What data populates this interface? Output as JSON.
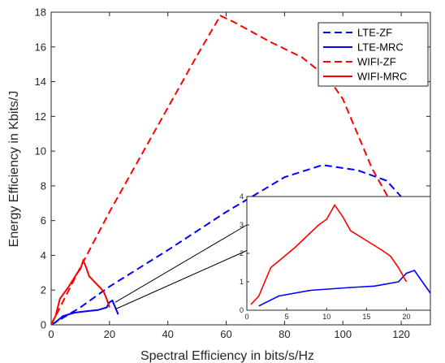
{
  "chart_data": [
    {
      "type": "line",
      "xlabel": "Spectral Efficiency in bits/s/Hz",
      "ylabel": "Energy Efficiency in Kbits/J",
      "xlim": [
        0,
        130
      ],
      "ylim": [
        0,
        18
      ],
      "xticks": [
        0,
        20,
        40,
        60,
        80,
        100,
        120
      ],
      "yticks": [
        0,
        2,
        4,
        6,
        8,
        10,
        12,
        14,
        16,
        18
      ],
      "grid": "off",
      "legend_position": "top-right",
      "series": [
        {
          "name": "LTE-ZF",
          "color": "#0000ff",
          "dash": "dashed",
          "x": [
            0,
            10,
            20,
            40,
            60,
            80,
            93,
            105,
            115,
            122,
            130
          ],
          "y": [
            0,
            1.0,
            2.2,
            4.3,
            6.5,
            8.5,
            9.2,
            8.9,
            8.3,
            7.0,
            6.3
          ]
        },
        {
          "name": "LTE-MRC",
          "color": "#0000ff",
          "dash": "solid",
          "x": [
            0,
            1.5,
            4,
            8,
            13,
            16,
            19,
            20,
            21,
            23
          ],
          "y": [
            0,
            0.15,
            0.5,
            0.7,
            0.8,
            0.85,
            1.0,
            1.3,
            1.4,
            0.6
          ]
        },
        {
          "name": "WIFI-ZF",
          "color": "#ff0000",
          "dash": "dashed",
          "x": [
            0,
            10,
            20,
            30,
            40,
            50,
            58,
            63,
            75,
            86,
            95,
            100,
            105,
            110,
            116
          ],
          "y": [
            0,
            3.3,
            6.5,
            9.5,
            12.5,
            15.5,
            17.8,
            17.4,
            16.3,
            15.4,
            14.2,
            13.0,
            11.0,
            9.0,
            7.2
          ]
        },
        {
          "name": "WIFI-MRC",
          "color": "#ff0000",
          "dash": "solid",
          "x": [
            0.5,
            1.5,
            3,
            6,
            9,
            10,
            11,
            12,
            13,
            17,
            18,
            19,
            20
          ],
          "y": [
            0.2,
            0.5,
            1.5,
            2.2,
            3.0,
            3.2,
            3.7,
            3.3,
            2.8,
            2.1,
            1.9,
            1.5,
            1.0
          ]
        }
      ]
    },
    {
      "type": "line",
      "xlim": [
        0,
        23
      ],
      "ylim": [
        0,
        4
      ],
      "xticks": [
        0,
        5,
        10,
        15,
        20
      ],
      "yticks": [
        0,
        1,
        2,
        3,
        4
      ],
      "series": [
        {
          "color": "#0000ff",
          "dash": "solid",
          "x": [
            1.5,
            4,
            8,
            13,
            16,
            19,
            20,
            21,
            23
          ],
          "y": [
            0.15,
            0.5,
            0.7,
            0.8,
            0.85,
            1.0,
            1.3,
            1.4,
            0.6
          ]
        },
        {
          "color": "#ff0000",
          "dash": "solid",
          "x": [
            0.5,
            1.5,
            3,
            6,
            9,
            10,
            11,
            12,
            13,
            17,
            18,
            19,
            20
          ],
          "y": [
            0.2,
            0.5,
            1.5,
            2.2,
            3.0,
            3.2,
            3.7,
            3.3,
            2.8,
            2.1,
            1.9,
            1.5,
            1.0
          ]
        }
      ]
    }
  ]
}
